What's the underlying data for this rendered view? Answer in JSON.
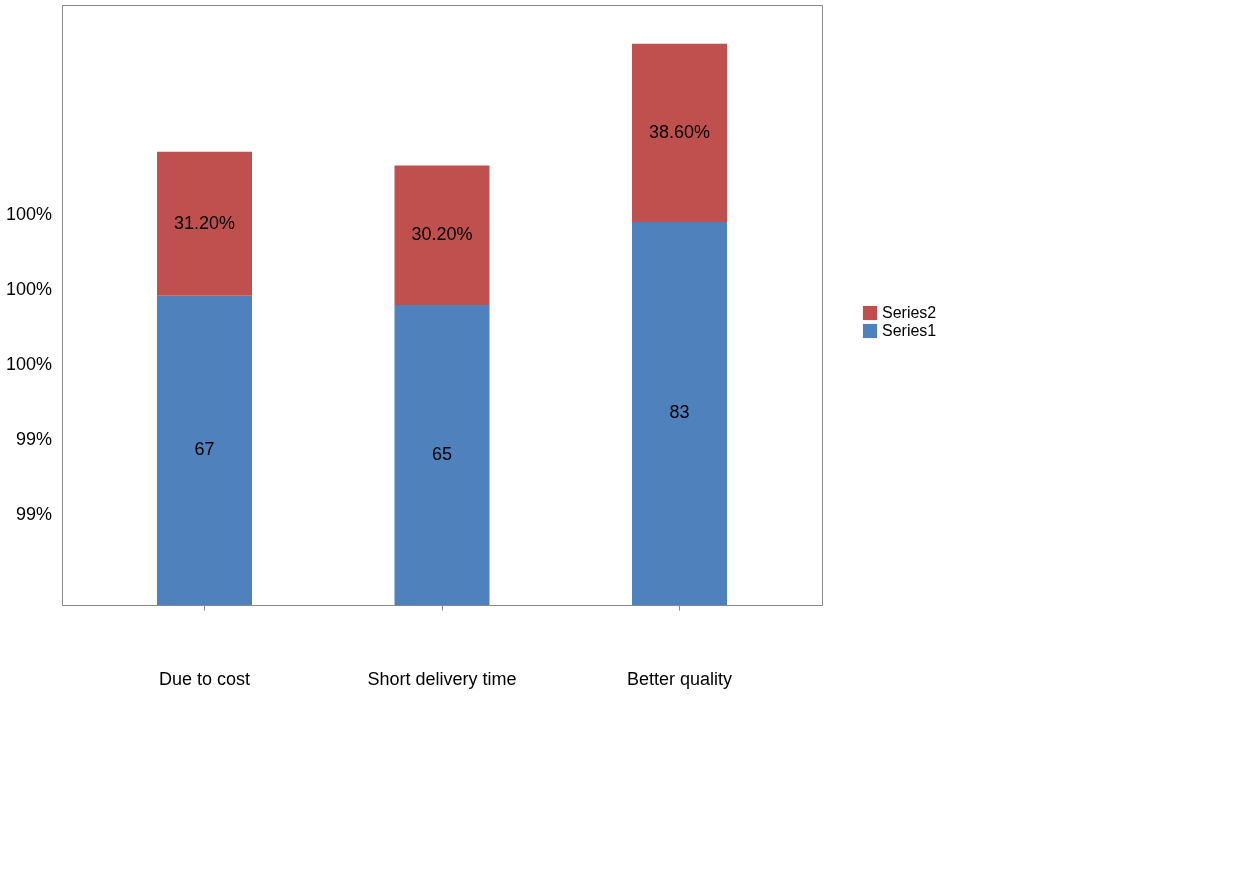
{
  "chart_data": {
    "type": "bar",
    "stacked": true,
    "categories": [
      "Due to cost",
      "Short delivery time",
      "Better quality"
    ],
    "series": [
      {
        "name": "Series1",
        "color": "#4f81bd",
        "values": [
          67,
          65,
          83
        ],
        "value_labels": [
          "67",
          "65",
          "83"
        ]
      },
      {
        "name": "Series2",
        "color": "#c0504d",
        "values": [
          31.2,
          30.2,
          38.6
        ],
        "value_labels": [
          "31.20%",
          "30.20%",
          "38.60%"
        ]
      }
    ],
    "annotations": [
      "100%",
      "100%",
      "100%",
      "99%",
      "99%"
    ],
    "legend": "right"
  }
}
